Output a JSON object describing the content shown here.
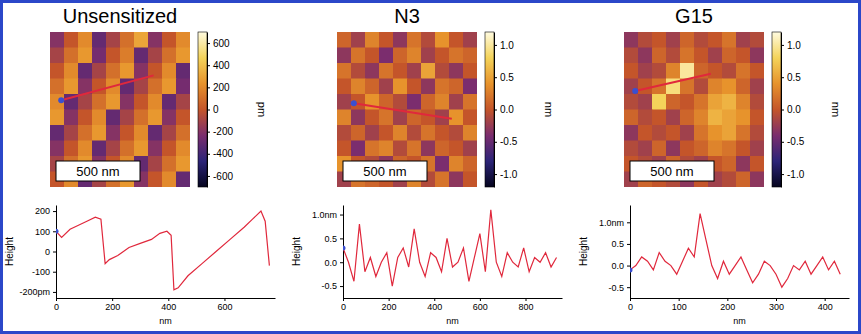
{
  "chart_data": [
    {
      "type": "heatmap",
      "title": "Unsensitized",
      "scale_bar": "500 nm",
      "color_label": "pm",
      "color_range": [
        -700,
        700
      ],
      "color_ticks": [
        600,
        400,
        200,
        0,
        -200,
        -400,
        -600
      ],
      "profile_line": {
        "x": [
          0.08,
          0.74
        ],
        "y": [
          0.44,
          0.28
        ]
      },
      "cells": [
        [
          -200,
          0,
          200,
          -300,
          -100,
          100,
          300,
          -200,
          0,
          200
        ],
        [
          -100,
          100,
          250,
          -250,
          0,
          150,
          -300,
          -100,
          100,
          250
        ],
        [
          0,
          200,
          -300,
          -100,
          100,
          250,
          -200,
          0,
          200,
          -300
        ],
        [
          100,
          250,
          -200,
          0,
          200,
          -300,
          -100,
          100,
          250,
          -250
        ],
        [
          200,
          -300,
          -100,
          100,
          250,
          -200,
          0,
          200,
          -300,
          -100
        ],
        [
          250,
          -200,
          0,
          200,
          -300,
          -100,
          100,
          250,
          -200,
          0
        ],
        [
          -300,
          -100,
          100,
          250,
          -200,
          0,
          200,
          -300,
          -100,
          100
        ],
        [
          -200,
          0,
          200,
          -300,
          -100,
          100,
          250,
          -200,
          0,
          200
        ],
        [
          -100,
          100,
          250,
          -200,
          0,
          200,
          -300,
          -100,
          100,
          250
        ],
        [
          0,
          200,
          -300,
          -100,
          100,
          250,
          -200,
          0,
          200,
          -300
        ]
      ],
      "profile": {
        "type": "line",
        "color": "#e0283c",
        "xlabel": "nm",
        "ylabel": "Height",
        "xlim": [
          0,
          780
        ],
        "ylim": [
          -230,
          230
        ],
        "xticks": [
          0,
          200,
          400,
          600
        ],
        "yticks": [
          200,
          100,
          0,
          -100,
          {
            "value": -200,
            "label": "-200pm"
          }
        ],
        "x": [
          0,
          20,
          50,
          80,
          110,
          140,
          160,
          175,
          190,
          220,
          260,
          300,
          340,
          370,
          395,
          410,
          420,
          435,
          470,
          520,
          570,
          620,
          670,
          700,
          730,
          745,
          760
        ],
        "values": [
          100,
          70,
          110,
          130,
          150,
          170,
          160,
          -60,
          -40,
          -20,
          20,
          40,
          60,
          90,
          100,
          80,
          -190,
          -180,
          -120,
          -60,
          0,
          60,
          120,
          160,
          200,
          150,
          -70
        ]
      }
    },
    {
      "type": "heatmap",
      "title": "N3",
      "scale_bar": "500 nm",
      "color_label": "nm",
      "color_range": [
        -1.2,
        1.2
      ],
      "color_ticks": [
        {
          "value": 1,
          "label": "1.0"
        },
        0.5,
        {
          "value": 0,
          "label": "0.0"
        },
        -0.5,
        {
          "value": -1,
          "label": "-1.0"
        }
      ],
      "profile_line": {
        "x": [
          0.12,
          0.82
        ],
        "y": [
          0.46,
          0.56
        ]
      },
      "cells": [
        [
          0.1,
          -0.2,
          0.3,
          0.0,
          -0.3,
          0.2,
          -0.1,
          0.4,
          0.0,
          -0.2
        ],
        [
          -0.3,
          0.2,
          0.0,
          -0.4,
          0.1,
          0.3,
          -0.2,
          0.0,
          0.2,
          0.1
        ],
        [
          0.2,
          -0.1,
          -0.3,
          0.2,
          0.0,
          -0.2,
          0.5,
          -0.1,
          -0.3,
          0.0
        ],
        [
          0.0,
          0.3,
          0.1,
          -0.2,
          0.4,
          0.0,
          -0.3,
          0.2,
          0.1,
          -0.4
        ],
        [
          -0.2,
          0.0,
          0.4,
          0.1,
          -0.1,
          -0.4,
          0.1,
          0.3,
          -0.2,
          0.2
        ],
        [
          0.3,
          -0.3,
          0.0,
          0.2,
          -0.2,
          0.1,
          0.0,
          -0.2,
          0.4,
          0.0
        ],
        [
          -0.1,
          0.1,
          -0.2,
          0.0,
          0.3,
          -0.1,
          0.2,
          0.0,
          -0.1,
          0.3
        ],
        [
          0.0,
          -0.4,
          0.2,
          0.3,
          -0.1,
          0.2,
          -0.3,
          0.1,
          0.0,
          -0.2
        ],
        [
          0.4,
          0.0,
          -0.1,
          -0.3,
          0.1,
          0.0,
          0.2,
          -0.4,
          0.3,
          0.1
        ],
        [
          -0.2,
          0.2,
          0.1,
          0.0,
          -0.2,
          0.3,
          -0.1,
          0.2,
          -0.3,
          0.0
        ]
      ],
      "profile": {
        "type": "line",
        "color": "#e0283c",
        "xlabel": "nm",
        "ylabel": "Height",
        "xlim": [
          0,
          960
        ],
        "ylim": [
          -0.75,
          1.2
        ],
        "xticks": [
          0,
          200,
          400,
          600,
          800
        ],
        "yticks": [
          {
            "value": 1,
            "label": "1.0nm"
          },
          0.5,
          {
            "value": 0,
            "label": "0.0"
          },
          -0.5
        ],
        "x": [
          0,
          24,
          48,
          72,
          96,
          120,
          144,
          168,
          192,
          216,
          240,
          264,
          288,
          312,
          336,
          360,
          384,
          408,
          432,
          456,
          480,
          504,
          528,
          552,
          576,
          600,
          624,
          648,
          672,
          696,
          720,
          744,
          768,
          792,
          816,
          840,
          864,
          888,
          912,
          936
        ],
        "values": [
          0.3,
          0.0,
          -0.4,
          0.8,
          -0.2,
          0.1,
          -0.3,
          0.0,
          0.2,
          -0.5,
          0.1,
          0.3,
          -0.1,
          0.7,
          0.0,
          -0.3,
          0.2,
          0.1,
          -0.2,
          0.5,
          -0.1,
          0.0,
          0.3,
          -0.4,
          0.1,
          0.6,
          -0.2,
          1.1,
          0.0,
          -0.3,
          0.2,
          0.0,
          -0.1,
          0.3,
          -0.2,
          0.1,
          0.0,
          0.2,
          -0.1,
          0.1
        ]
      }
    },
    {
      "type": "heatmap",
      "title": "G15",
      "scale_bar": "500 nm",
      "color_label": "nm",
      "color_range": [
        -1.2,
        1.2
      ],
      "color_ticks": [
        {
          "value": 1,
          "label": "1.0"
        },
        0.5,
        {
          "value": 0,
          "label": "0.0"
        },
        -0.5,
        {
          "value": -1,
          "label": "-1.0"
        }
      ],
      "profile_line": {
        "x": [
          0.08,
          0.62
        ],
        "y": [
          0.38,
          0.27
        ]
      },
      "cells": [
        [
          -0.3,
          -0.1,
          0.0,
          -0.2,
          0.1,
          -0.1,
          0.0,
          0.2,
          -0.2,
          -0.1
        ],
        [
          -0.1,
          -0.3,
          0.1,
          -0.1,
          0.2,
          0.0,
          -0.2,
          0.1,
          0.0,
          -0.3
        ],
        [
          0.0,
          -0.2,
          -0.1,
          0.3,
          1.0,
          0.1,
          0.0,
          -0.1,
          0.2,
          0.0
        ],
        [
          -0.2,
          0.0,
          0.2,
          0.9,
          0.2,
          -0.1,
          0.3,
          0.4,
          0.1,
          -0.2
        ],
        [
          -0.1,
          -0.2,
          0.8,
          0.1,
          0.0,
          0.2,
          0.5,
          0.6,
          0.3,
          -0.1
        ],
        [
          0.1,
          -0.1,
          0.0,
          -0.2,
          0.1,
          0.3,
          0.6,
          0.5,
          0.4,
          0.0
        ],
        [
          -0.3,
          0.0,
          -0.1,
          0.0,
          -0.2,
          0.2,
          0.4,
          0.5,
          0.2,
          -0.1
        ],
        [
          -0.1,
          -0.2,
          0.1,
          -0.3,
          0.0,
          0.1,
          0.3,
          0.2,
          0.0,
          -0.2
        ],
        [
          0.0,
          -0.1,
          -0.2,
          0.1,
          -0.1,
          -0.2,
          0.0,
          0.1,
          -0.3,
          0.0
        ],
        [
          -0.2,
          0.1,
          0.0,
          -0.1,
          -0.3,
          0.0,
          -0.2,
          -0.1,
          0.1,
          -0.3
        ]
      ],
      "profile": {
        "type": "line",
        "color": "#e0283c",
        "xlabel": "nm",
        "ylabel": "Height",
        "xlim": [
          0,
          450
        ],
        "ylim": [
          -0.75,
          1.4
        ],
        "xticks": [
          0,
          100,
          200,
          300,
          400
        ],
        "yticks": [
          {
            "value": 1,
            "label": "1.0nm"
          },
          0.5,
          {
            "value": 0,
            "label": "0.0"
          },
          -0.5
        ],
        "x": [
          0,
          12,
          24,
          36,
          48,
          60,
          72,
          84,
          96,
          108,
          120,
          132,
          144,
          156,
          168,
          180,
          192,
          204,
          216,
          228,
          240,
          252,
          264,
          276,
          288,
          300,
          312,
          324,
          336,
          348,
          360,
          372,
          384,
          396,
          408,
          420,
          432
        ],
        "values": [
          -0.1,
          0.0,
          0.2,
          0.1,
          -0.1,
          0.3,
          0.1,
          0.0,
          -0.2,
          0.1,
          0.4,
          0.2,
          1.2,
          0.6,
          0.0,
          -0.3,
          0.1,
          -0.2,
          0.0,
          0.2,
          -0.1,
          -0.4,
          -0.2,
          0.1,
          0.0,
          -0.2,
          -0.5,
          -0.3,
          0.0,
          -0.1,
          0.1,
          -0.2,
          0.0,
          0.2,
          -0.1,
          0.1,
          -0.2
        ]
      }
    }
  ]
}
